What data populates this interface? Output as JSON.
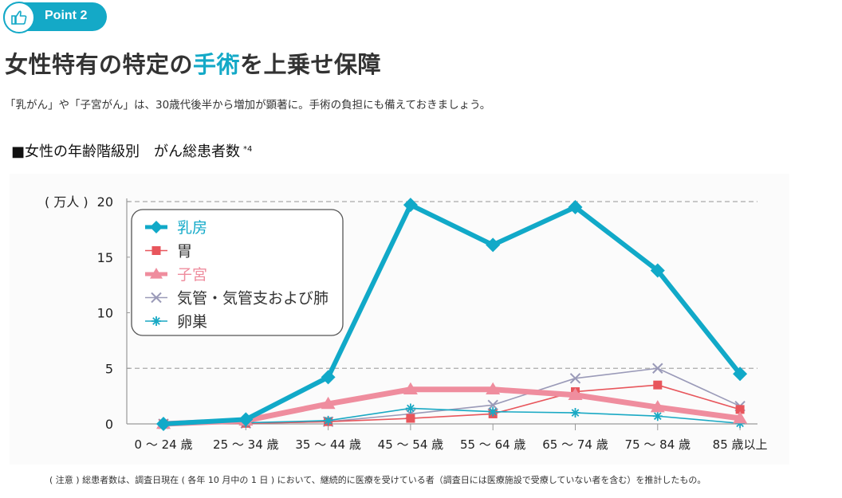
{
  "header": {
    "badge_label": "Point 2",
    "badge_icon": "thumbs-up-icon",
    "title_parts": [
      "女性特有の特定の",
      "手術",
      "を上乗せ保障"
    ],
    "subtitle": "「乳がん」や「子宮がん」は、30歳代後半から増加が顕著に。手術の負担にも備えておきましょう。"
  },
  "chart_heading": {
    "label": "■女性の年齢階級別　がん総患者数",
    "footnote_mark": "*4"
  },
  "note": "( 注意 ) 総患者数は、調査日現在 ( 各年 10 月中の 1 日 ) において、継続的に医療を受けている者（調査日には医療施設で受療していない者を含む）を推計したもの。",
  "colors": {
    "accent": "#14a9c7",
    "breast": "#11a9c8",
    "stomach": "#e8565c",
    "uterus": "#ef8d9e",
    "lung": "#9a9ab8",
    "ovary": "#1aa9c4"
  },
  "chart_data": {
    "type": "line",
    "title": "女性の年齢階級別　がん総患者数",
    "ylabel": "( 万人 )",
    "xlabel": "",
    "ylim": [
      0,
      20
    ],
    "yticks": [
      0,
      5,
      10,
      15,
      20
    ],
    "grid": "dashed horizontal at 5 and 20",
    "legend_position": "top-left",
    "categories": [
      "0 ～ 24 歳",
      "25 ～ 34 歳",
      "35 ～ 44 歳",
      "45 ～ 54 歳",
      "55 ～ 64 歳",
      "65 ～ 74 歳",
      "75 ～ 84 歳",
      "85 歳以上"
    ],
    "series": [
      {
        "name": "乳房",
        "key": "breast",
        "marker": "diamond",
        "values": [
          0,
          0.4,
          4.2,
          19.7,
          16.1,
          19.5,
          13.8,
          4.5
        ]
      },
      {
        "name": "胃",
        "key": "stomach",
        "marker": "square",
        "values": [
          0,
          0.05,
          0.2,
          0.5,
          0.9,
          2.9,
          3.5,
          1.3
        ]
      },
      {
        "name": "子宮",
        "key": "uterus",
        "marker": "triangle",
        "values": [
          0,
          0.3,
          1.8,
          3.1,
          3.1,
          2.6,
          1.5,
          0.5
        ]
      },
      {
        "name": "気管・気管支および肺",
        "key": "lung",
        "marker": "x",
        "values": [
          0,
          0.05,
          0.2,
          0.9,
          1.7,
          4.1,
          5.0,
          1.6
        ]
      },
      {
        "name": "卵巣",
        "key": "ovary",
        "marker": "asterisk",
        "values": [
          0,
          0.1,
          0.3,
          1.4,
          1.1,
          1.0,
          0.7,
          0.05
        ]
      }
    ]
  }
}
